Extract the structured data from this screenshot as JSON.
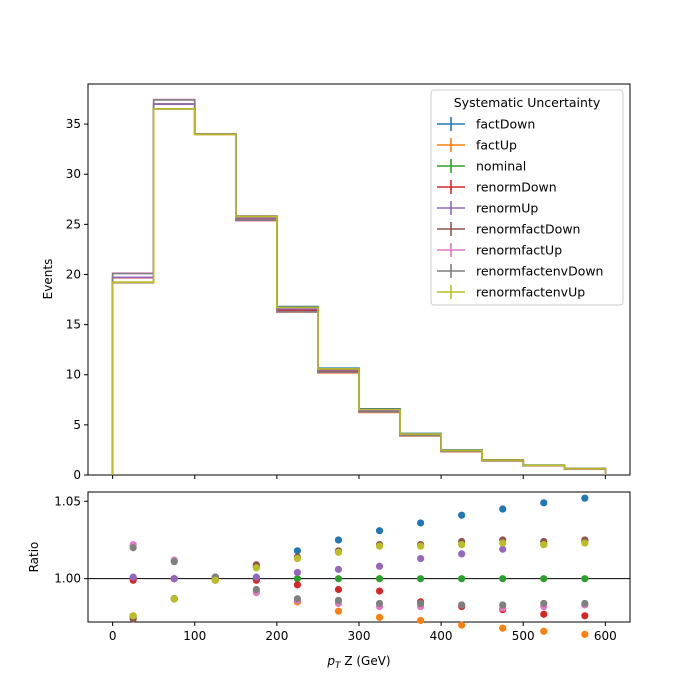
{
  "chart_data": {
    "type": "step",
    "xlabel_main": "p",
    "xlabel_sub": "T",
    "xlabel_rest": " Z (GeV)",
    "ylabel_top": "Events",
    "ylabel_bottom": "Ratio",
    "legend_title": "Systematic Uncertainty",
    "bin_edges": [
      0,
      50,
      100,
      150,
      200,
      250,
      300,
      350,
      400,
      450,
      500,
      550,
      600
    ],
    "bin_centers": [
      25,
      75,
      125,
      175,
      225,
      275,
      325,
      375,
      425,
      475,
      525,
      575
    ],
    "xlim": [
      -30,
      630
    ],
    "top_ylim": [
      0,
      39
    ],
    "ratio_ylim": [
      0.972,
      1.056
    ],
    "x_ticks": [
      0,
      100,
      200,
      300,
      400,
      500,
      600
    ],
    "top_y_ticks": [
      0,
      5,
      10,
      15,
      20,
      25,
      30,
      35
    ],
    "ratio_y_ticks": [
      1.0,
      1.05
    ],
    "nominal_values": [
      19.7,
      37.0,
      34.0,
      25.6,
      16.5,
      10.4,
      6.4,
      4.0,
      2.4,
      1.45,
      0.95,
      0.62
    ],
    "series": [
      {
        "name": "factDown",
        "color": "#1f77b4",
        "ratio": [
          0.975,
          0.987,
          1.001,
          1.008,
          1.018,
          1.025,
          1.031,
          1.036,
          1.041,
          1.045,
          1.049,
          1.052
        ]
      },
      {
        "name": "factUp",
        "color": "#ff7f0e",
        "ratio": [
          0.976,
          0.987,
          0.999,
          0.992,
          0.985,
          0.979,
          0.975,
          0.973,
          0.97,
          0.968,
          0.966,
          0.964
        ]
      },
      {
        "name": "nominal",
        "color": "#2ca02c",
        "ratio": [
          1.0,
          1.0,
          1.0,
          1.0,
          1.0,
          1.0,
          1.0,
          1.0,
          1.0,
          1.0,
          1.0,
          1.0
        ]
      },
      {
        "name": "renormDown",
        "color": "#d62728",
        "ratio": [
          0.999,
          1.0,
          1.0,
          0.999,
          0.996,
          0.993,
          0.992,
          0.985,
          0.982,
          0.98,
          0.977,
          0.976
        ]
      },
      {
        "name": "renormUp",
        "color": "#9467bd",
        "ratio": [
          1.001,
          1.0,
          1.0,
          1.001,
          1.004,
          1.006,
          1.008,
          1.013,
          1.016,
          1.019,
          1.022,
          1.024
        ]
      },
      {
        "name": "renormfactDown",
        "color": "#8c564b",
        "ratio": [
          0.974,
          0.987,
          1.001,
          1.009,
          1.014,
          1.018,
          1.022,
          1.022,
          1.024,
          1.025,
          1.024,
          1.025
        ]
      },
      {
        "name": "renormfactUp",
        "color": "#e377c2",
        "ratio": [
          1.022,
          1.012,
          0.999,
          0.991,
          0.986,
          0.984,
          0.982,
          0.982,
          0.983,
          0.981,
          0.982,
          0.983
        ]
      },
      {
        "name": "renormfactenvDown",
        "color": "#7f7f7f",
        "ratio": [
          1.02,
          1.011,
          1.001,
          0.993,
          0.987,
          0.986,
          0.984,
          0.984,
          0.983,
          0.983,
          0.984,
          0.984
        ]
      },
      {
        "name": "renormfactenvUp",
        "color": "#bcbd22",
        "ratio": [
          0.976,
          0.987,
          0.999,
          1.007,
          1.013,
          1.017,
          1.021,
          1.021,
          1.022,
          1.023,
          1.022,
          1.023
        ]
      }
    ]
  }
}
